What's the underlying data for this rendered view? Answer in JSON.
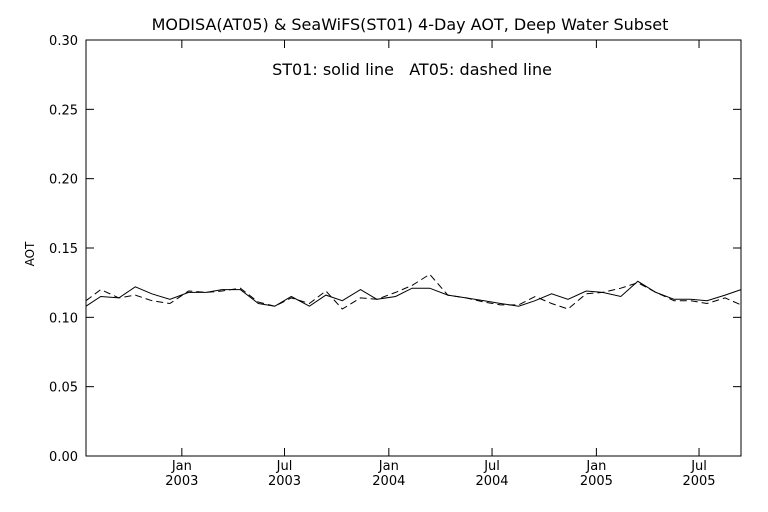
{
  "chart_data": {
    "type": "line",
    "title": "MODISA(AT05) & SeaWiFS(ST01) 4-Day AOT, Deep Water Subset",
    "annotation": "ST01: solid line   AT05: dashed line",
    "xlabel": "",
    "ylabel": "AOT",
    "ylim": [
      0.0,
      0.3
    ],
    "yticks": [
      "0.00",
      "0.05",
      "0.10",
      "0.15",
      "0.20",
      "0.25",
      "0.30"
    ],
    "xlim": [
      "2002-07-16",
      "2005-09-13"
    ],
    "xticks": [
      {
        "date": "2003-01-01",
        "line1": "Jan",
        "line2": "2003"
      },
      {
        "date": "2003-07-01",
        "line1": "Jul",
        "line2": "2003"
      },
      {
        "date": "2004-01-01",
        "line1": "Jan",
        "line2": "2004"
      },
      {
        "date": "2004-07-01",
        "line1": "Jul",
        "line2": "2004"
      },
      {
        "date": "2005-01-01",
        "line1": "Jan",
        "line2": "2005"
      },
      {
        "date": "2005-07-01",
        "line1": "Jul",
        "line2": "2005"
      }
    ],
    "grid": false,
    "series": [
      {
        "name": "ST01",
        "style": "solid",
        "color": "#000000",
        "x": [
          "2002-07-16",
          "2002-08-11",
          "2002-09-12",
          "2002-10-11",
          "2002-11-09",
          "2002-12-11",
          "2003-01-13",
          "2003-02-13",
          "2003-03-13",
          "2003-04-14",
          "2003-05-16",
          "2003-06-14",
          "2003-07-13",
          "2003-08-14",
          "2003-09-12",
          "2003-10-11",
          "2003-11-12",
          "2003-12-11",
          "2004-01-13",
          "2004-02-11",
          "2004-03-13",
          "2004-04-14",
          "2004-05-16",
          "2004-06-17",
          "2004-07-16",
          "2004-08-17",
          "2004-09-15",
          "2004-10-14",
          "2004-11-12",
          "2004-12-14",
          "2005-01-12",
          "2005-02-13",
          "2005-03-15",
          "2005-04-16",
          "2005-05-18",
          "2005-06-16",
          "2005-07-15",
          "2005-08-16",
          "2005-09-13"
        ],
        "y": [
          0.108,
          0.115,
          0.114,
          0.122,
          0.117,
          0.113,
          0.118,
          0.118,
          0.12,
          0.12,
          0.11,
          0.108,
          0.115,
          0.108,
          0.116,
          0.112,
          0.12,
          0.113,
          0.115,
          0.121,
          0.121,
          0.116,
          0.114,
          0.112,
          0.11,
          0.108,
          0.112,
          0.117,
          0.113,
          0.119,
          0.118,
          0.115,
          0.126,
          0.118,
          0.113,
          0.113,
          0.112,
          0.116,
          0.12
        ]
      },
      {
        "name": "AT05",
        "style": "dashed",
        "color": "#000000",
        "x": [
          "2002-07-16",
          "2002-08-11",
          "2002-09-12",
          "2002-10-11",
          "2002-11-09",
          "2002-12-11",
          "2003-01-13",
          "2003-02-13",
          "2003-03-13",
          "2003-04-14",
          "2003-05-16",
          "2003-06-14",
          "2003-07-13",
          "2003-08-14",
          "2003-09-12",
          "2003-10-11",
          "2003-11-12",
          "2003-12-11",
          "2004-01-13",
          "2004-02-11",
          "2004-03-13",
          "2004-04-14",
          "2004-05-16",
          "2004-06-17",
          "2004-07-16",
          "2004-08-17",
          "2004-09-15",
          "2004-10-14",
          "2004-11-12",
          "2004-12-14",
          "2005-01-12",
          "2005-02-13",
          "2005-03-15",
          "2005-04-16",
          "2005-05-18",
          "2005-06-16",
          "2005-07-15",
          "2005-08-16",
          "2005-09-13"
        ],
        "y": [
          0.112,
          0.12,
          0.114,
          0.116,
          0.112,
          0.11,
          0.119,
          0.118,
          0.119,
          0.121,
          0.111,
          0.108,
          0.114,
          0.11,
          0.119,
          0.106,
          0.114,
          0.113,
          0.118,
          0.123,
          0.131,
          0.116,
          0.114,
          0.111,
          0.109,
          0.109,
          0.115,
          0.11,
          0.106,
          0.117,
          0.118,
          0.121,
          0.125,
          0.118,
          0.112,
          0.112,
          0.11,
          0.114,
          0.109
        ]
      }
    ]
  }
}
